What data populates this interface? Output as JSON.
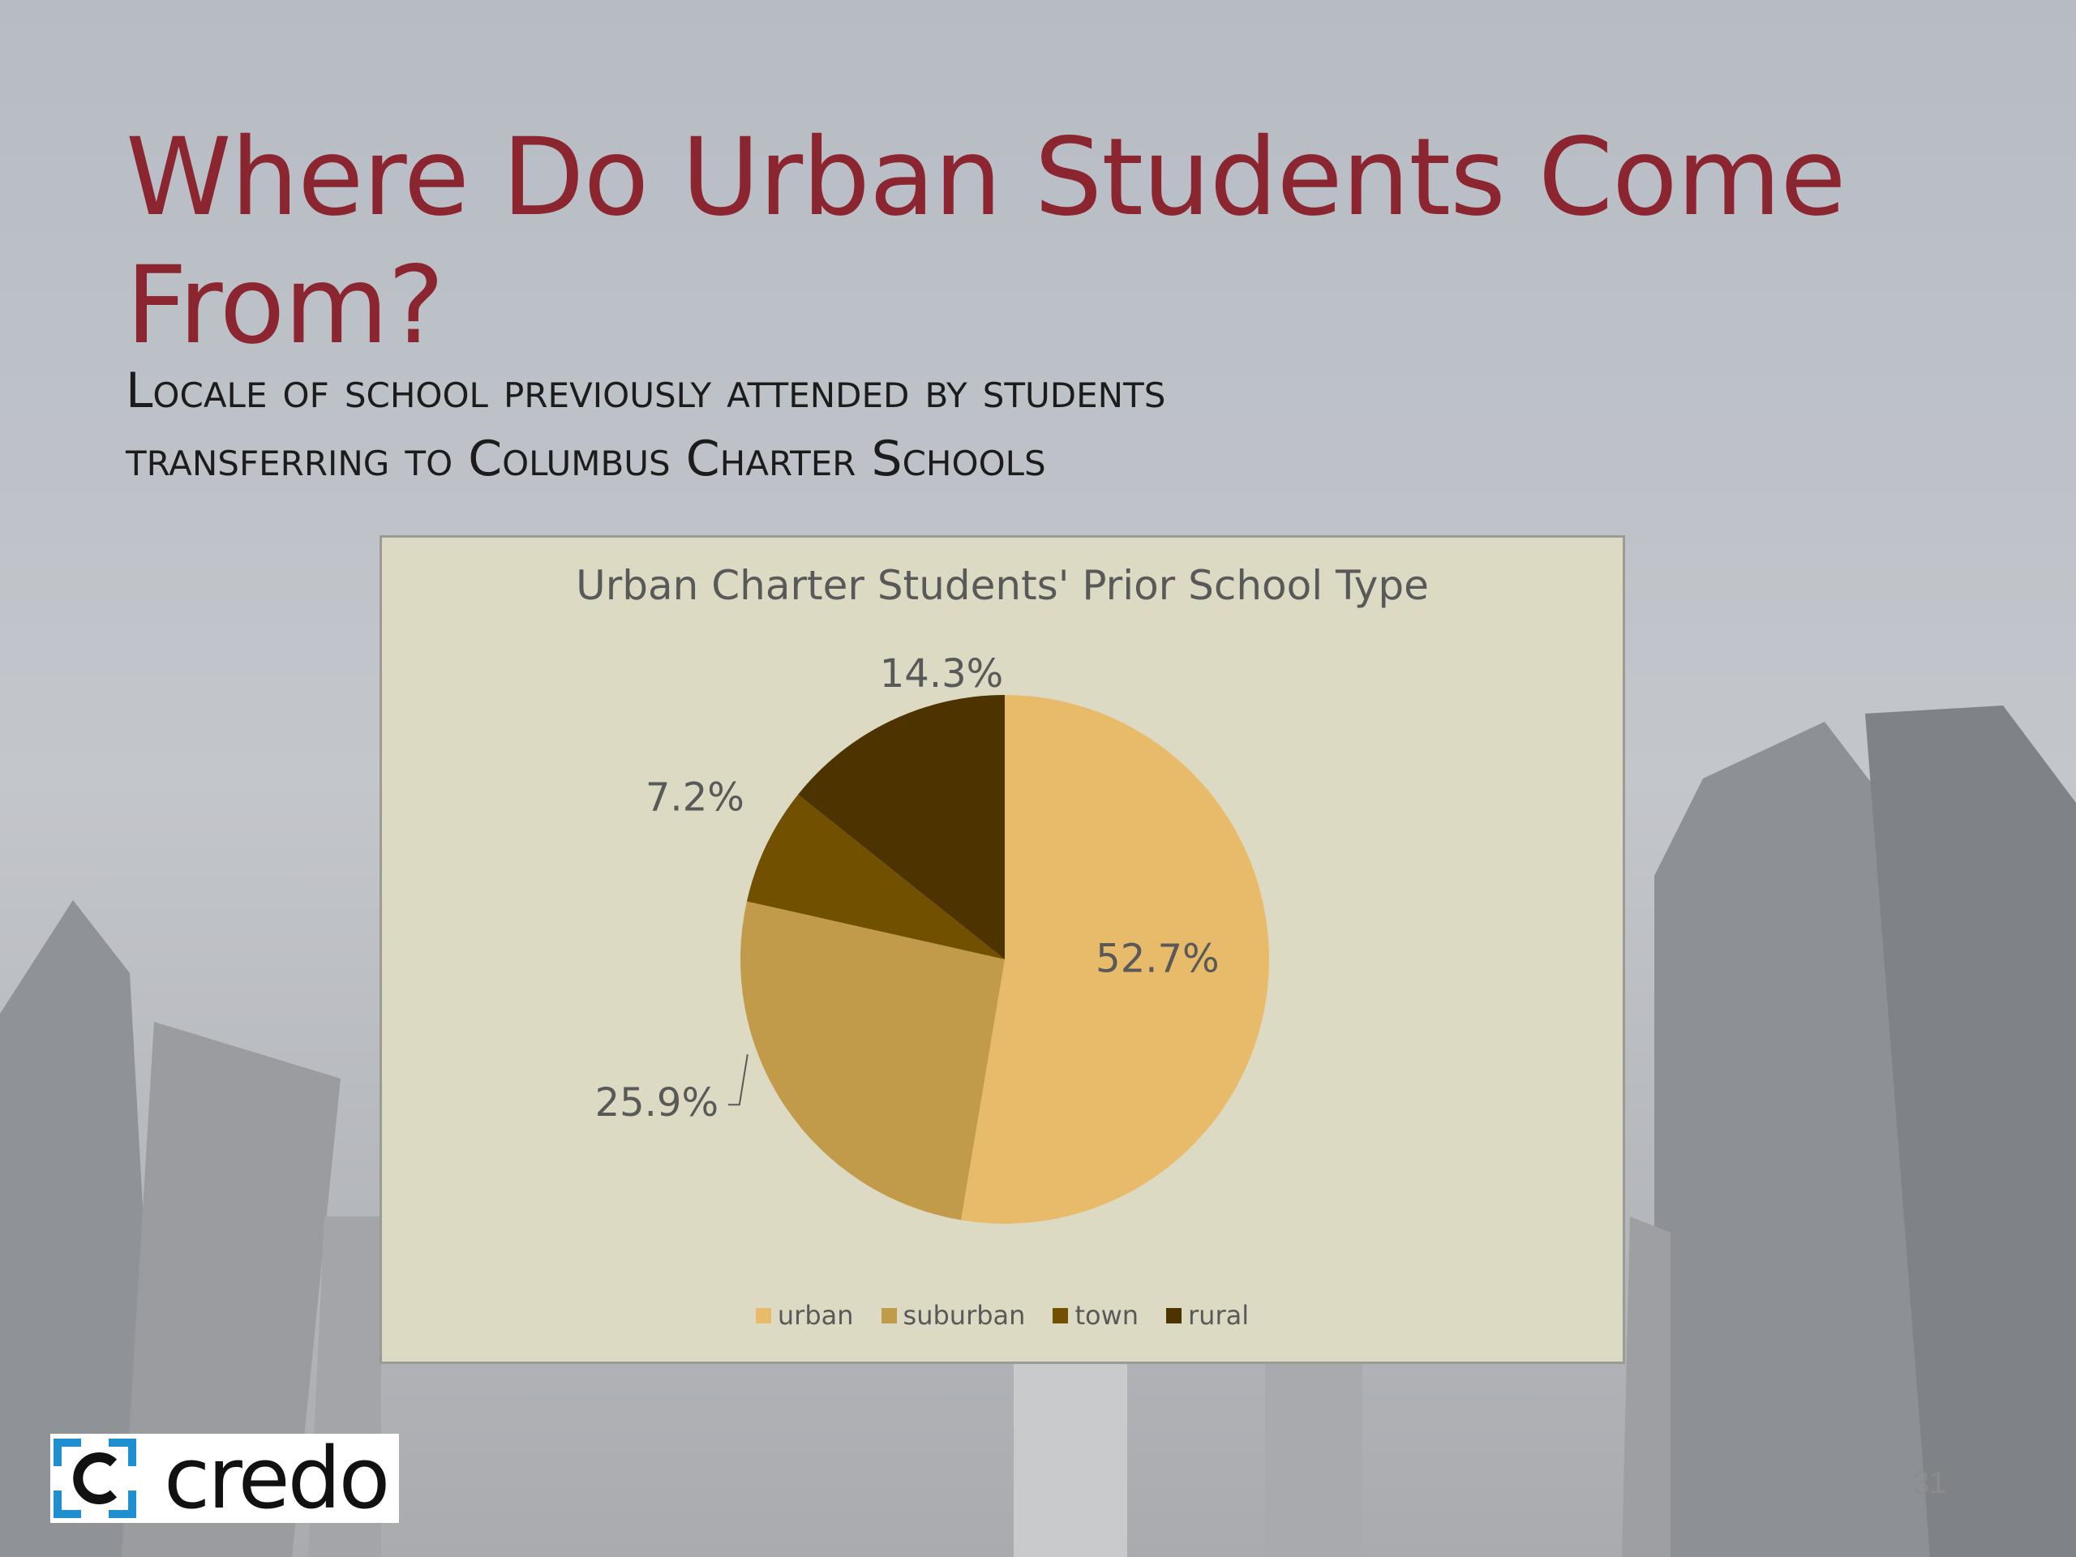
{
  "slide": {
    "title": "Where Do Urban Students Come From?",
    "subtitle_line1": "Locale of school previously attended by students",
    "subtitle_line2": "transferring to Columbus Charter Schools",
    "page_number": "31"
  },
  "logo": {
    "text": "credo",
    "mark_color": "#1f8fd0"
  },
  "colors": {
    "title": "#8b2530",
    "panel_background": "#dddac3"
  },
  "chart_data": {
    "type": "pie",
    "title": "Urban Charter Students' Prior School Type",
    "categories": [
      "urban",
      "suburban",
      "town",
      "rural"
    ],
    "values": [
      52.7,
      25.9,
      7.2,
      14.3
    ],
    "labels": [
      "52.7%",
      "25.9%",
      "7.2%",
      "14.3%"
    ],
    "colors": [
      "#e8bb6b",
      "#c19a4a",
      "#715000",
      "#4d3300"
    ],
    "start_angle": "12 o'clock, clockwise",
    "legend_position": "bottom"
  }
}
